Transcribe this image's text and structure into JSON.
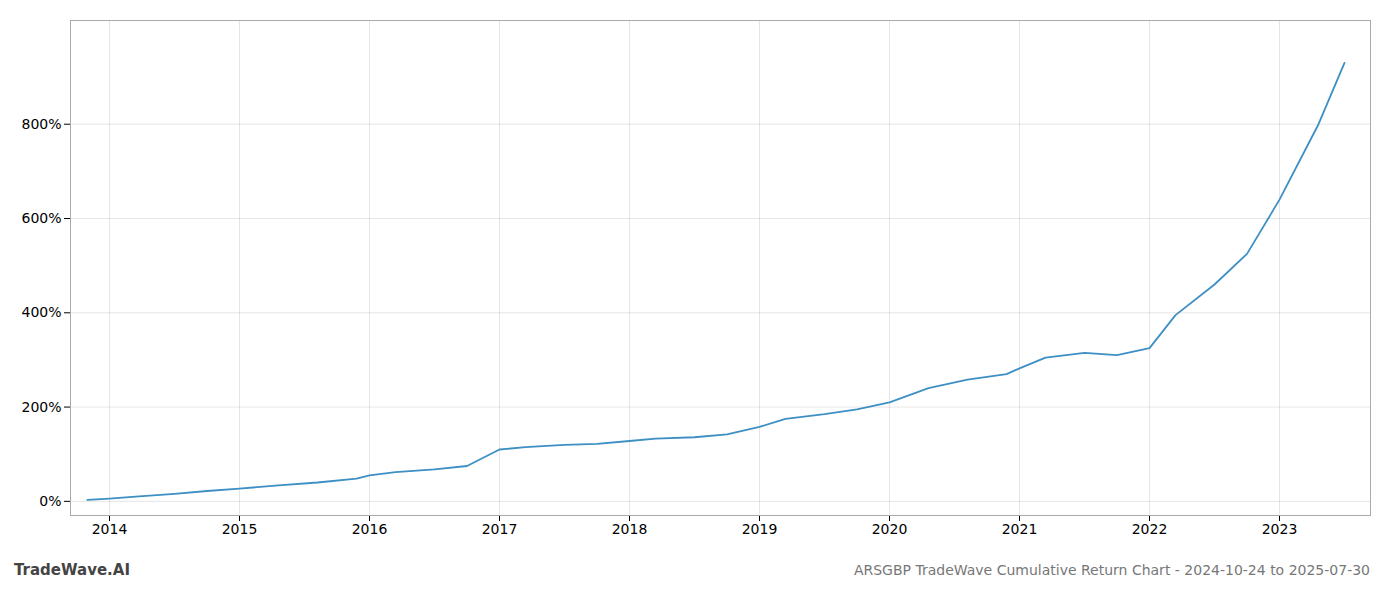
{
  "chart_data": {
    "type": "line",
    "title": "ARSGBP TradeWave Cumulative Return Chart - 2024-10-24 to 2025-07-30",
    "annotations": [
      "TradeWave.AI"
    ],
    "x": [
      2013.83,
      2014.0,
      2014.2,
      2014.5,
      2014.75,
      2015.0,
      2015.3,
      2015.6,
      2015.9,
      2016.0,
      2016.2,
      2016.5,
      2016.75,
      2017.0,
      2017.2,
      2017.5,
      2017.75,
      2018.0,
      2018.2,
      2018.5,
      2018.75,
      2019.0,
      2019.2,
      2019.5,
      2019.75,
      2020.0,
      2020.3,
      2020.6,
      2020.9,
      2021.0,
      2021.2,
      2021.5,
      2021.75,
      2022.0,
      2022.2,
      2022.5,
      2022.75,
      2023.0,
      2023.3,
      2023.5
    ],
    "values": [
      3,
      6,
      10,
      16,
      22,
      27,
      34,
      40,
      48,
      55,
      62,
      68,
      75,
      110,
      115,
      120,
      122,
      128,
      133,
      136,
      142,
      158,
      175,
      185,
      195,
      210,
      240,
      258,
      270,
      282,
      305,
      315,
      310,
      325,
      395,
      460,
      525,
      640,
      800,
      930
    ],
    "color": "#3d8fc4",
    "xlim": [
      2013.7,
      2023.7
    ],
    "xticks": [
      2014,
      2015,
      2016,
      2017,
      2018,
      2019,
      2020,
      2021,
      2022,
      2023
    ],
    "ylim": [
      -30,
      1020
    ],
    "yticks": [
      {
        "value": 0,
        "label": "0%"
      },
      {
        "value": 200,
        "label": "200%"
      },
      {
        "value": 400,
        "label": "400%"
      },
      {
        "value": 600,
        "label": "600%"
      },
      {
        "value": 800,
        "label": "800%"
      }
    ],
    "grid": true
  }
}
